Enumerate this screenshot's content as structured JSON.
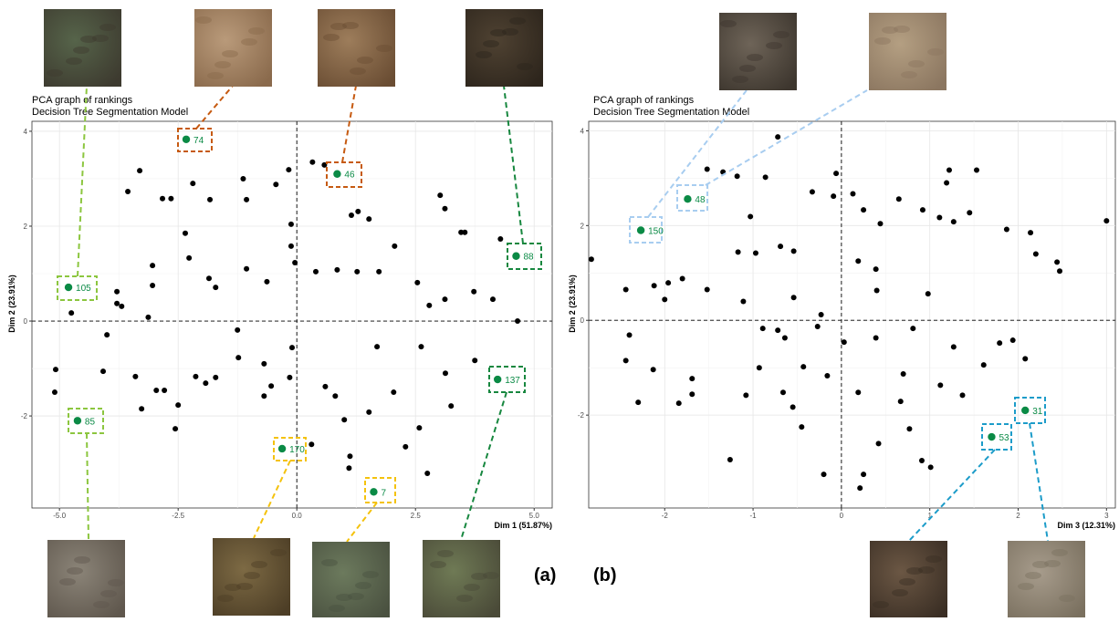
{
  "chart_data": [
    {
      "type": "scatter",
      "title": "PCA graph of rankings",
      "subtitle": "Decision Tree Segmentation Model",
      "xlabel": "Dim 1 (51.87%)",
      "ylabel": "Dim 2 (23.91%)",
      "panel": "(a)",
      "xlim": [
        -5.58,
        5.38
      ],
      "ylim": [
        -3.94,
        4.21
      ],
      "xticks": [
        {
          "value": -5,
          "label": "-5.0"
        },
        -2.5,
        {
          "value": 0,
          "label": "0.0"
        },
        2.5,
        {
          "value": 5,
          "label": "5.0"
        }
      ],
      "yticks": [
        -2,
        0,
        2,
        4
      ],
      "grid": true,
      "color": "#000000",
      "x": [
        -3.31,
        -3.56,
        -2.83,
        -2.65,
        -2.19,
        -1.83,
        -1.13,
        -1.06,
        -0.44,
        -0.17,
        0.33,
        0.58,
        1.15,
        1.29,
        1.52,
        3.02,
        3.12,
        3.46,
        3.54,
        4.29,
        -3.04,
        -3.04,
        -3.79,
        -3.79,
        -3.69,
        -3.13,
        -2.35,
        -2.27,
        -1.85,
        -1.71,
        -1.06,
        -0.63,
        -0.12,
        -0.12,
        -0.04,
        0.4,
        0.85,
        1.27,
        1.73,
        2.06,
        2.54,
        2.79,
        3.12,
        3.73,
        4.13,
        4.65,
        -4.0,
        -4.08,
        -3.4,
        -3.27,
        -2.79,
        -2.56,
        -2.13,
        -1.71,
        -1.23,
        -0.69,
        -0.69,
        -0.54,
        -0.15,
        -0.1,
        0.6,
        0.81,
        1.0,
        1.1,
        1.52,
        2.04,
        2.29,
        2.58,
        2.75,
        3.13,
        3.25,
        -5.08,
        -5.1,
        -2.96,
        -2.5,
        0.31,
        1.12,
        1.69,
        2.62,
        3.75,
        -1.92,
        -1.25,
        -4.75
      ],
      "y": [
        3.17,
        2.73,
        2.58,
        2.58,
        2.9,
        2.56,
        3.0,
        2.56,
        2.88,
        3.19,
        3.35,
        3.29,
        2.23,
        2.31,
        2.15,
        2.65,
        2.37,
        1.87,
        1.87,
        1.73,
        1.17,
        0.75,
        0.62,
        0.37,
        0.31,
        0.08,
        1.85,
        1.33,
        0.9,
        0.71,
        1.1,
        0.83,
        2.04,
        1.58,
        1.23,
        1.04,
        1.08,
        1.04,
        1.04,
        1.58,
        0.81,
        0.33,
        0.46,
        0.62,
        0.46,
        0.0,
        -0.29,
        -1.06,
        -1.17,
        -1.85,
        -1.46,
        -2.27,
        -1.17,
        -1.19,
        -0.77,
        -0.9,
        -1.58,
        -1.37,
        -1.19,
        -0.56,
        -1.38,
        -1.58,
        -2.08,
        -3.1,
        -1.92,
        -1.5,
        -2.65,
        -2.25,
        -3.21,
        -1.1,
        -1.79,
        -1.02,
        -1.5,
        -1.46,
        -1.77,
        -2.6,
        -2.85,
        -0.54,
        -0.54,
        -0.83,
        -1.31,
        -0.19,
        0.17
      ],
      "highlights": {
        "labels": [
          "74",
          "46",
          "88",
          "105",
          "137",
          "85",
          "170",
          "7"
        ],
        "x": [
          -2.33,
          0.85,
          4.62,
          -4.81,
          4.23,
          -4.62,
          -0.31,
          1.62
        ],
        "y": [
          3.83,
          3.1,
          1.37,
          0.71,
          -1.23,
          -2.1,
          -2.69,
          -3.6
        ],
        "colors": [
          "#c65a11",
          "#c65a11",
          "#17873f",
          "#8cc63f",
          "#17873f",
          "#8cc63f",
          "#f4c20d",
          "#f4c20d"
        ],
        "point_color": "#0a8a45"
      }
    },
    {
      "type": "scatter",
      "title": "PCA graph of rankings",
      "subtitle": "Decision Tree Segmentation Model",
      "xlabel": "Dim 3 (12.31%)",
      "ylabel": "Dim 2 (23.91%)",
      "panel": "(b)",
      "xlim": [
        -2.86,
        3.1
      ],
      "ylim": [
        -3.96,
        4.2
      ],
      "xticks": [
        -2,
        -1,
        0,
        1,
        2,
        3
      ],
      "yticks": [
        -2,
        0,
        2,
        4
      ],
      "grid": true,
      "color": "#000000",
      "x": [
        -2.83,
        -2.44,
        -2.12,
        -1.96,
        -1.8,
        -1.52,
        -1.52,
        -1.34,
        -1.18,
        -1.03,
        -0.72,
        -0.86,
        -1.17,
        -0.97,
        -0.69,
        -0.54,
        -0.33,
        -0.09,
        -0.06,
        0.13,
        0.25,
        0.19,
        0.39,
        0.44,
        0.65,
        0.92,
        1.11,
        1.19,
        1.22,
        1.27,
        1.45,
        1.53,
        1.87,
        2.14,
        2.2,
        2.44,
        2.47,
        3.0,
        -2.4,
        -2.44,
        -2.3,
        -2.13,
        -1.84,
        -1.69,
        -1.69,
        -1.26,
        -1.08,
        -0.93,
        -0.66,
        -0.55,
        -0.45,
        -0.2,
        -0.16,
        0.03,
        0.19,
        0.42,
        0.67,
        0.77,
        0.91,
        1.01,
        1.12,
        1.37,
        1.61,
        1.79,
        1.94,
        2.08,
        -0.89,
        -0.64,
        -0.23,
        0.39,
        0.81,
        1.27,
        -0.43,
        -0.72,
        -2.0,
        -1.11,
        -0.54,
        0.4,
        0.98,
        -0.27,
        0.21,
        0.25,
        0.7
      ],
      "y": [
        1.29,
        0.65,
        0.73,
        0.79,
        0.88,
        0.65,
        3.19,
        3.13,
        3.04,
        2.19,
        3.87,
        3.02,
        1.44,
        1.42,
        1.56,
        1.46,
        2.71,
        2.62,
        3.1,
        2.67,
        2.33,
        1.25,
        1.08,
        2.04,
        2.56,
        2.33,
        2.17,
        2.9,
        3.17,
        2.08,
        2.27,
        3.17,
        1.92,
        1.85,
        1.4,
        1.23,
        1.04,
        2.1,
        -0.31,
        -0.85,
        -1.73,
        -1.04,
        -1.75,
        -1.23,
        -1.56,
        -2.94,
        -1.58,
        -1.0,
        -1.52,
        -1.83,
        -2.25,
        -3.25,
        -1.17,
        -0.46,
        -1.52,
        -2.6,
        -1.71,
        -2.29,
        -2.96,
        -3.1,
        -1.37,
        -1.58,
        -0.94,
        -0.48,
        -0.42,
        -0.81,
        -0.17,
        -0.37,
        0.12,
        -0.37,
        -0.17,
        -0.56,
        -0.98,
        -0.21,
        0.44,
        0.4,
        0.48,
        0.63,
        0.56,
        -0.13,
        -3.54,
        -3.25,
        -1.13
      ],
      "highlights": {
        "labels": [
          "150",
          "48",
          "31",
          "53"
        ],
        "x": [
          -2.27,
          -1.74,
          2.08,
          1.7
        ],
        "y": [
          1.9,
          2.56,
          -1.9,
          -2.46
        ],
        "colors": [
          "#a8cdf0",
          "#a8cdf0",
          "#1c9cc9",
          "#1c9cc9"
        ],
        "point_color": "#0a8a45"
      }
    }
  ]
}
